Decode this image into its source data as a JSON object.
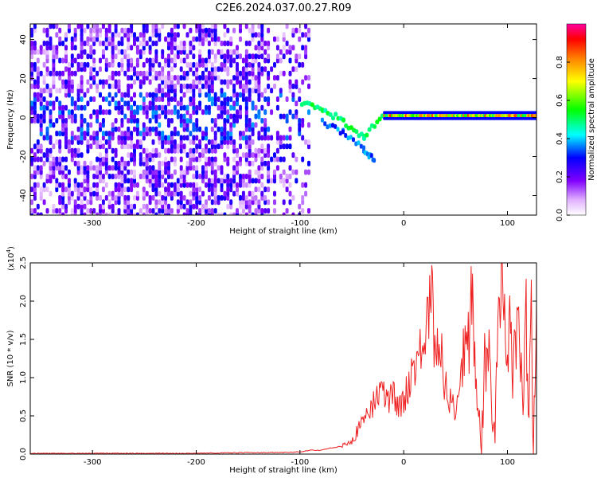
{
  "title": "C2E6.2024.037.00.27.R09",
  "colors": {
    "snr_line": "#ee2222",
    "axis": "#000000"
  },
  "chart_data": [
    {
      "type": "heatmap",
      "xlabel": "Height of straight line (km)",
      "ylabel": "Frequency (Hz)",
      "xlim": [
        -360,
        128
      ],
      "ylim": [
        -50,
        48
      ],
      "x_ticks": [
        -300,
        -200,
        -100,
        0,
        100
      ],
      "y_ticks": [
        -40,
        -20,
        0,
        20,
        40
      ],
      "colorbar": {
        "label": "Normalized spectral amplitude",
        "range": [
          0,
          1
        ],
        "ticks": [
          "0.0",
          "0.2",
          "0.4",
          "0.6",
          "0.8"
        ],
        "colormap": "rainbow (white-violet-blue-cyan-green-yellow-red)"
      },
      "features": {
        "main_tone_freq_hz": 1,
        "main_tone_x_range_km": [
          -20,
          128
        ],
        "main_tone_amplitude": 0.9,
        "broadband_noise_x_range_km": [
          -360,
          -90
        ],
        "noise_amplitude_range": [
          0.05,
          0.3
        ],
        "drifting_trace": {
          "x": [
            -100,
            -80,
            -60,
            -40,
            -20
          ],
          "freq_hz": [
            8,
            4,
            -2,
            -10,
            2
          ],
          "amplitude": 0.45
        },
        "lower_trace": {
          "x": [
            -80,
            -60,
            -40,
            -30
          ],
          "freq_hz": [
            -2,
            -8,
            -16,
            -22
          ],
          "amplitude": 0.3
        }
      }
    },
    {
      "type": "line",
      "xlabel": "Height of straight line (km)",
      "ylabel": "SNR (10 * v/v)",
      "scale_label": "(x10",
      "scale_exp": "4",
      "scale_close": ")",
      "xlim": [
        -360,
        128
      ],
      "ylim": [
        0,
        2.5
      ],
      "x_ticks": [
        -300,
        -200,
        -100,
        0,
        100
      ],
      "y_ticks": [
        "0.0",
        "0.5",
        "1.0",
        "1.5",
        "2.0",
        "2.5"
      ],
      "series": [
        {
          "color": "#ee2222",
          "x": [
            -360,
            -300,
            -200,
            -150,
            -120,
            -100,
            -90,
            -80,
            -70,
            -60,
            -50,
            -40,
            -35,
            -30,
            -25,
            -20,
            -15,
            -10,
            -5,
            0,
            5,
            10,
            15,
            20,
            25,
            27,
            30,
            35,
            40,
            45,
            50,
            55,
            60,
            63,
            65,
            67,
            70,
            73,
            75,
            78,
            80,
            83,
            85,
            88,
            90,
            93,
            95,
            98,
            100,
            103,
            105,
            110,
            115,
            118,
            120,
            123,
            125,
            128
          ],
          "values": [
            0.01,
            0.01,
            0.01,
            0.02,
            0.02,
            0.03,
            0.05,
            0.05,
            0.08,
            0.1,
            0.2,
            0.4,
            0.6,
            0.6,
            0.8,
            0.8,
            0.7,
            0.8,
            0.6,
            0.7,
            0.9,
            1.2,
            1.3,
            1.4,
            1.9,
            2.1,
            1.3,
            1.5,
            0.9,
            0.7,
            0.6,
            1.0,
            1.6,
            1.6,
            2.4,
            1.6,
            0.8,
            0.6,
            0.0,
            1.3,
            1.0,
            1.6,
            0.4,
            0.3,
            1.3,
            2.2,
            2.5,
            1.7,
            1.2,
            1.9,
            0.9,
            1.8,
            0.6,
            1.9,
            0.2,
            1.9,
            0.05,
            2.0
          ]
        }
      ]
    }
  ]
}
